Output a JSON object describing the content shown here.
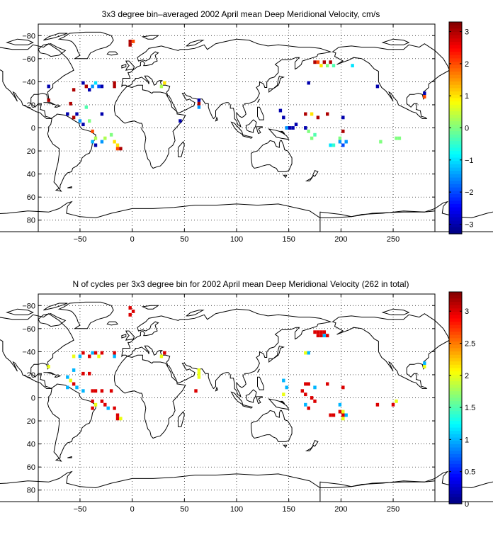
{
  "figure": {
    "panels": [
      {
        "title": "3x3 degree bin–averaged 2002 April mean Deep Meridional Velocity, cm/s",
        "colorbar": {
          "ticks": [
            "3",
            "2",
            "1",
            "0",
            "−1",
            "−2",
            "−3"
          ]
        }
      },
      {
        "title": "N of cycles per 3x3 degree bin for 2002 April mean Deep Meridional Velocity (262 in total)",
        "colorbar": {
          "ticks": [
            "3",
            "2.5",
            "2",
            "1.5",
            "1",
            "0.5",
            "0"
          ]
        }
      }
    ],
    "x_tick_labels": [
      "−50",
      "0",
      "50",
      "100",
      "150",
      "200",
      "250"
    ],
    "y_tick_labels": [
      "80",
      "60",
      "40",
      "20",
      "0",
      "−20",
      "−40",
      "−60",
      "−80"
    ]
  },
  "chart_data": [
    {
      "type": "heatmap",
      "title": "3x3 degree bin–averaged 2002 April mean Deep Meridional Velocity, cm/s",
      "xlim": [
        -90,
        290
      ],
      "ylim": [
        -90,
        90
      ],
      "xticks": [
        -50,
        0,
        50,
        100,
        150,
        200,
        250
      ],
      "yticks": [
        -80,
        -60,
        -40,
        -20,
        0,
        20,
        40,
        60,
        80
      ],
      "grid": "dotted",
      "colorbar": {
        "min": -3.3,
        "max": 3.3,
        "colormap": "jet",
        "ticks": [
          3,
          2,
          1,
          0,
          -1,
          -2,
          -3
        ]
      },
      "cells": [
        {
          "lon": -2,
          "lat": 75,
          "v": 3.0
        },
        {
          "lon": 1,
          "lat": 75,
          "v": 2.0
        },
        {
          "lon": -2,
          "lat": 72,
          "v": 3.0
        },
        {
          "lon": -80,
          "lat": 36,
          "v": -3.0
        },
        {
          "lon": -56,
          "lat": 33,
          "v": 3.0
        },
        {
          "lon": -47,
          "lat": 39,
          "v": -3.0
        },
        {
          "lon": -44,
          "lat": 36,
          "v": 3.0
        },
        {
          "lon": -41,
          "lat": 33,
          "v": -3.0
        },
        {
          "lon": -38,
          "lat": 36,
          "v": -1.5
        },
        {
          "lon": -35,
          "lat": 39,
          "v": -1.0
        },
        {
          "lon": -32,
          "lat": 36,
          "v": -2.0
        },
        {
          "lon": -29,
          "lat": 36,
          "v": -3.0
        },
        {
          "lon": -17,
          "lat": 36,
          "v": 3.0
        },
        {
          "lon": -17,
          "lat": 39,
          "v": 3.0
        },
        {
          "lon": 28,
          "lat": 36,
          "v": 0.3
        },
        {
          "lon": 31,
          "lat": 39,
          "v": 1.0
        },
        {
          "lon": 64,
          "lat": 24,
          "v": -3.0
        },
        {
          "lon": 64,
          "lat": 21,
          "v": 3.0
        },
        {
          "lon": 64,
          "lat": 18,
          "v": -1.5
        },
        {
          "lon": -80,
          "lat": 24,
          "v": 3.0
        },
        {
          "lon": -59,
          "lat": 21,
          "v": 3.0
        },
        {
          "lon": -44,
          "lat": 18,
          "v": -0.3
        },
        {
          "lon": -62,
          "lat": 12,
          "v": -3.0
        },
        {
          "lon": -56,
          "lat": 9,
          "v": 3.0
        },
        {
          "lon": -53,
          "lat": 12,
          "v": -3.0
        },
        {
          "lon": -50,
          "lat": 6,
          "v": -1.5
        },
        {
          "lon": -47,
          "lat": 3,
          "v": -3.0
        },
        {
          "lon": -41,
          "lat": 6,
          "v": 0.0
        },
        {
          "lon": -29,
          "lat": 12,
          "v": -3.0
        },
        {
          "lon": -38,
          "lat": -3,
          "v": 2.0
        },
        {
          "lon": -35,
          "lat": -9,
          "v": 0.3
        },
        {
          "lon": -38,
          "lat": -12,
          "v": -1.3
        },
        {
          "lon": -35,
          "lat": -15,
          "v": -3.0
        },
        {
          "lon": -29,
          "lat": -12,
          "v": -1.5
        },
        {
          "lon": -26,
          "lat": -9,
          "v": 0.3
        },
        {
          "lon": -20,
          "lat": -6,
          "v": 0.0
        },
        {
          "lon": -17,
          "lat": -12,
          "v": 1.0
        },
        {
          "lon": -14,
          "lat": -15,
          "v": 1.0
        },
        {
          "lon": -14,
          "lat": -18,
          "v": 2.0
        },
        {
          "lon": -11,
          "lat": -18,
          "v": 3.0
        },
        {
          "lon": 46,
          "lat": 6,
          "v": -3.0
        },
        {
          "lon": 142,
          "lat": 15,
          "v": -3.0
        },
        {
          "lon": 145,
          "lat": 9,
          "v": -3.0
        },
        {
          "lon": 148,
          "lat": 0,
          "v": -1.5
        },
        {
          "lon": 151,
          "lat": 0,
          "v": -3.0
        },
        {
          "lon": 154,
          "lat": 0,
          "v": -3.0
        },
        {
          "lon": 157,
          "lat": 3,
          "v": -3.0
        },
        {
          "lon": 166,
          "lat": 12,
          "v": 3.0
        },
        {
          "lon": 172,
          "lat": 12,
          "v": 1.0
        },
        {
          "lon": 178,
          "lat": 9,
          "v": 3.0
        },
        {
          "lon": 166,
          "lat": 0,
          "v": -3.0
        },
        {
          "lon": 169,
          "lat": -3,
          "v": 0.0
        },
        {
          "lon": 172,
          "lat": -9,
          "v": 0.0
        },
        {
          "lon": 175,
          "lat": -6,
          "v": -0.3
        },
        {
          "lon": 187,
          "lat": 12,
          "v": 3.0
        },
        {
          "lon": 202,
          "lat": 9,
          "v": -3.0
        },
        {
          "lon": 202,
          "lat": -3,
          "v": 3.0
        },
        {
          "lon": 199,
          "lat": -9,
          "v": 0.0
        },
        {
          "lon": 190,
          "lat": -15,
          "v": -1.0
        },
        {
          "lon": 193,
          "lat": -15,
          "v": -0.5
        },
        {
          "lon": 199,
          "lat": -12,
          "v": -1.5
        },
        {
          "lon": 202,
          "lat": -15,
          "v": -2.0
        },
        {
          "lon": 205,
          "lat": -12,
          "v": -1.5
        },
        {
          "lon": 238,
          "lat": -12,
          "v": 0.0
        },
        {
          "lon": 253,
          "lat": -9,
          "v": 0.0
        },
        {
          "lon": 256,
          "lat": -9,
          "v": 0.0
        },
        {
          "lon": 175,
          "lat": 57,
          "v": 3.0
        },
        {
          "lon": 178,
          "lat": 57,
          "v": 2.0
        },
        {
          "lon": 181,
          "lat": 54,
          "v": 1.0
        },
        {
          "lon": 184,
          "lat": 57,
          "v": 3.0
        },
        {
          "lon": 187,
          "lat": 54,
          "v": 0.0
        },
        {
          "lon": 190,
          "lat": 57,
          "v": 3.0
        },
        {
          "lon": 193,
          "lat": 54,
          "v": -0.3
        },
        {
          "lon": 211,
          "lat": 54,
          "v": -1.0
        },
        {
          "lon": 169,
          "lat": 39,
          "v": -3.0
        },
        {
          "lon": 235,
          "lat": 36,
          "v": -3.0
        },
        {
          "lon": 280,
          "lat": 30,
          "v": -3.0
        },
        {
          "lon": 280,
          "lat": 27,
          "v": 2.0
        }
      ]
    },
    {
      "type": "heatmap",
      "title": "N of cycles per 3x3 degree bin for 2002 April mean Deep Meridional Velocity (262 in total)",
      "xlim": [
        -90,
        290
      ],
      "ylim": [
        -90,
        90
      ],
      "xticks": [
        -50,
        0,
        50,
        100,
        150,
        200,
        250
      ],
      "yticks": [
        -80,
        -60,
        -40,
        -20,
        0,
        20,
        40,
        60,
        80
      ],
      "grid": "dotted",
      "colorbar": {
        "min": 0,
        "max": 3.3,
        "colormap": "jet",
        "ticks": [
          3,
          2.5,
          2,
          1.5,
          1,
          0.5,
          0
        ]
      },
      "cells": [
        {
          "lon": -2,
          "lat": 78,
          "v": 3
        },
        {
          "lon": 1,
          "lat": 75,
          "v": 3
        },
        {
          "lon": -2,
          "lat": 72,
          "v": 3
        },
        {
          "lon": -56,
          "lat": 36,
          "v": 2
        },
        {
          "lon": -50,
          "lat": 36,
          "v": 1
        },
        {
          "lon": -47,
          "lat": 39,
          "v": 3
        },
        {
          "lon": -41,
          "lat": 36,
          "v": 3
        },
        {
          "lon": -38,
          "lat": 39,
          "v": 1
        },
        {
          "lon": -35,
          "lat": 39,
          "v": 3
        },
        {
          "lon": -32,
          "lat": 36,
          "v": 2
        },
        {
          "lon": -29,
          "lat": 39,
          "v": 3
        },
        {
          "lon": -17,
          "lat": 39,
          "v": 3
        },
        {
          "lon": -17,
          "lat": 36,
          "v": 1
        },
        {
          "lon": 28,
          "lat": 36,
          "v": 2
        },
        {
          "lon": 31,
          "lat": 39,
          "v": 3
        },
        {
          "lon": -80,
          "lat": 27,
          "v": 2
        },
        {
          "lon": -56,
          "lat": 24,
          "v": 1
        },
        {
          "lon": -47,
          "lat": 21,
          "v": 3
        },
        {
          "lon": -41,
          "lat": 21,
          "v": 3
        },
        {
          "lon": -62,
          "lat": 18,
          "v": 1
        },
        {
          "lon": -59,
          "lat": 15,
          "v": 2
        },
        {
          "lon": -56,
          "lat": 12,
          "v": 3
        },
        {
          "lon": -53,
          "lat": 9,
          "v": 1
        },
        {
          "lon": -62,
          "lat": 9,
          "v": 1
        },
        {
          "lon": -47,
          "lat": 6,
          "v": 1
        },
        {
          "lon": -38,
          "lat": 6,
          "v": 3
        },
        {
          "lon": -35,
          "lat": 6,
          "v": 3
        },
        {
          "lon": -29,
          "lat": 6,
          "v": 3
        },
        {
          "lon": -20,
          "lat": 6,
          "v": 3
        },
        {
          "lon": 64,
          "lat": 24,
          "v": 2
        },
        {
          "lon": 64,
          "lat": 21,
          "v": 2
        },
        {
          "lon": 64,
          "lat": 18,
          "v": 2
        },
        {
          "lon": 61,
          "lat": 6,
          "v": 3
        },
        {
          "lon": -38,
          "lat": -3,
          "v": 3
        },
        {
          "lon": -35,
          "lat": -6,
          "v": 2
        },
        {
          "lon": -38,
          "lat": -9,
          "v": 3
        },
        {
          "lon": -29,
          "lat": -3,
          "v": 3
        },
        {
          "lon": -26,
          "lat": -6,
          "v": 3
        },
        {
          "lon": -23,
          "lat": -9,
          "v": 1
        },
        {
          "lon": -17,
          "lat": -9,
          "v": 3
        },
        {
          "lon": -14,
          "lat": -15,
          "v": 3
        },
        {
          "lon": -14,
          "lat": -18,
          "v": 3
        },
        {
          "lon": -11,
          "lat": -18,
          "v": 2
        },
        {
          "lon": 145,
          "lat": 15,
          "v": 1
        },
        {
          "lon": 148,
          "lat": 9,
          "v": 1
        },
        {
          "lon": 145,
          "lat": 3,
          "v": 2
        },
        {
          "lon": 166,
          "lat": 12,
          "v": 3
        },
        {
          "lon": 169,
          "lat": 12,
          "v": 3
        },
        {
          "lon": 175,
          "lat": 9,
          "v": 1
        },
        {
          "lon": 163,
          "lat": 6,
          "v": 3
        },
        {
          "lon": 166,
          "lat": 3,
          "v": 3
        },
        {
          "lon": 172,
          "lat": 0,
          "v": 3
        },
        {
          "lon": 175,
          "lat": -3,
          "v": 3
        },
        {
          "lon": 169,
          "lat": -9,
          "v": 3
        },
        {
          "lon": 166,
          "lat": -6,
          "v": 1
        },
        {
          "lon": 187,
          "lat": 12,
          "v": 3
        },
        {
          "lon": 202,
          "lat": 9,
          "v": 3
        },
        {
          "lon": 199,
          "lat": -6,
          "v": 1
        },
        {
          "lon": 202,
          "lat": -12,
          "v": 2
        },
        {
          "lon": 190,
          "lat": -15,
          "v": 3
        },
        {
          "lon": 193,
          "lat": -15,
          "v": 3
        },
        {
          "lon": 199,
          "lat": -12,
          "v": 3
        },
        {
          "lon": 202,
          "lat": -15,
          "v": 3
        },
        {
          "lon": 205,
          "lat": -15,
          "v": 1
        },
        {
          "lon": 202,
          "lat": -18,
          "v": 2
        },
        {
          "lon": 235,
          "lat": -6,
          "v": 3
        },
        {
          "lon": 250,
          "lat": -6,
          "v": 3
        },
        {
          "lon": 253,
          "lat": -3,
          "v": 2
        },
        {
          "lon": 175,
          "lat": 57,
          "v": 3
        },
        {
          "lon": 178,
          "lat": 57,
          "v": 3
        },
        {
          "lon": 181,
          "lat": 57,
          "v": 3
        },
        {
          "lon": 184,
          "lat": 57,
          "v": 3
        },
        {
          "lon": 178,
          "lat": 54,
          "v": 3
        },
        {
          "lon": 187,
          "lat": 54,
          "v": 3
        },
        {
          "lon": 181,
          "lat": 54,
          "v": 3
        },
        {
          "lon": 184,
          "lat": 54,
          "v": 1
        },
        {
          "lon": 169,
          "lat": 39,
          "v": 1
        },
        {
          "lon": 166,
          "lat": 39,
          "v": 2
        },
        {
          "lon": 280,
          "lat": 30,
          "v": 1
        },
        {
          "lon": 280,
          "lat": 27,
          "v": 2
        }
      ]
    }
  ]
}
